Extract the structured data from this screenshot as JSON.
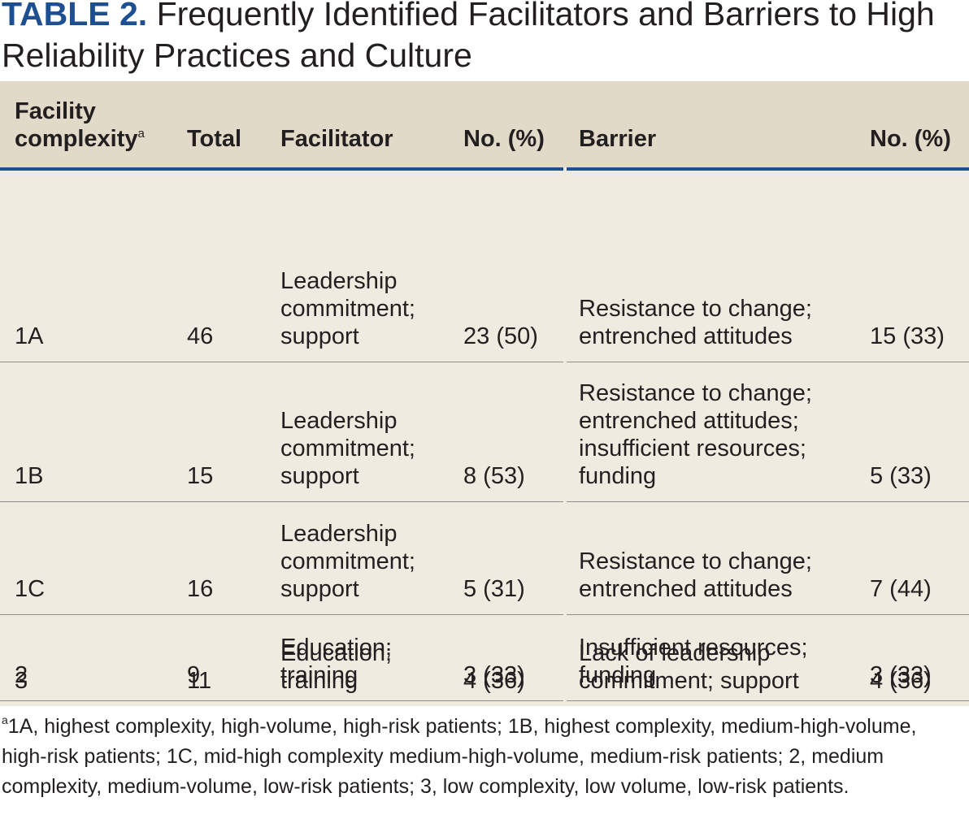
{
  "title": {
    "label": "TABLE 2.",
    "text": "Frequently Identified Facilitators and Barriers to High Reliability Practices and Culture"
  },
  "headers": {
    "facility_line1": "Facility",
    "facility_line2": "complexity",
    "facility_sup": "a",
    "total": "Total",
    "facilitator": "Facilitator",
    "fac_no": "No. (%)",
    "barrier": "Barrier",
    "bar_no": "No. (%)"
  },
  "rows": [
    {
      "complexity": "1A",
      "total": "46",
      "facilitator": "Leadership\ncommitment;\nsupport",
      "fac_no": "23 (50)",
      "barrier": "Resistance to change;\nentrenched attitudes",
      "bar_no": "15 (33)"
    },
    {
      "complexity": "1B",
      "total": "15",
      "facilitator": "Leadership\ncommitment;\nsupport",
      "fac_no": "8 (53)",
      "barrier": "Resistance to change;\nentrenched attitudes;\ninsufficient resources;\nfunding",
      "bar_no": "5 (33)"
    },
    {
      "complexity": "1C",
      "total": "16",
      "facilitator": "Leadership\ncommitment;\nsupport",
      "fac_no": "5 (31)",
      "barrier": "Resistance to change;\nentrenched attitudes",
      "bar_no": "7 (44)"
    },
    {
      "complexity": "2",
      "total": "9",
      "facilitator": "Education;\ntraining",
      "fac_no": "3 (33)",
      "barrier": "Insufficient resources;\nfunding",
      "bar_no": "3 (33)"
    },
    {
      "complexity": "3",
      "total": "11",
      "facilitator": "Education;\ntraining",
      "fac_no": "4 (36)",
      "barrier": "Lack of leadership\ncommitment; support",
      "bar_no": "4 (36)"
    }
  ],
  "footnote": {
    "marker": "a",
    "text": "1A, highest complexity, high-volume, high-risk patients; 1B, highest complexity, medium-high-volume, high-risk patients; 1C, mid-high complexity medium-high-volume, medium-risk patients; 2, medium complexity, medium-volume, low-risk patients; 3, low complexity, low volume, low-risk patients."
  }
}
